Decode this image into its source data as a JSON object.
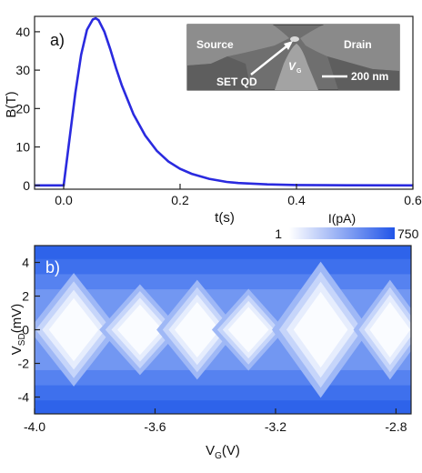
{
  "chart_data": [
    {
      "type": "line",
      "panel_label": "a)",
      "xlabel": "t(s)",
      "ylabel": "B(T)",
      "xlim": [
        -0.05,
        0.6
      ],
      "ylim": [
        -1,
        44
      ],
      "x_ticks": [
        "0.0",
        "0.2",
        "0.4",
        "0.6"
      ],
      "x_tick_values": [
        0.0,
        0.2,
        0.4,
        0.6
      ],
      "y_ticks": [
        "0",
        "10",
        "20",
        "30",
        "40"
      ],
      "y_tick_values": [
        0,
        10,
        20,
        30,
        40
      ],
      "line_color": "#2a2adf",
      "x": [
        -0.05,
        0.0,
        0.01,
        0.02,
        0.03,
        0.04,
        0.05,
        0.055,
        0.06,
        0.07,
        0.08,
        0.09,
        0.1,
        0.12,
        0.14,
        0.16,
        0.18,
        0.2,
        0.22,
        0.25,
        0.28,
        0.3,
        0.35,
        0.4,
        0.45,
        0.5,
        0.6
      ],
      "y": [
        0,
        0,
        12,
        24,
        34,
        40.5,
        43.2,
        43.5,
        43.0,
        40.0,
        35.5,
        30.5,
        26.0,
        18.5,
        13.0,
        9.0,
        6.2,
        4.3,
        3.0,
        1.7,
        0.9,
        0.6,
        0.25,
        0.1,
        0.05,
        0.02,
        0
      ],
      "inset": {
        "labels": {
          "source": "Source",
          "drain": "Drain",
          "gate": "V",
          "gate_sub": "G",
          "dot": "SET QD",
          "scale": "200 nm"
        }
      }
    },
    {
      "type": "heatmap",
      "panel_label": "b)",
      "xlabel": "V",
      "xlabel_sub": "G",
      "xlabel_unit": "(V)",
      "ylabel": "V",
      "ylabel_sub": "SD",
      "ylabel_unit": "(mV)",
      "xlim": [
        -4.0,
        -2.75
      ],
      "ylim": [
        -5,
        5
      ],
      "x_ticks": [
        "-4.0",
        "-3.6",
        "-3.2",
        "-2.8"
      ],
      "x_tick_values": [
        -4.0,
        -3.6,
        -3.2,
        -2.8
      ],
      "y_ticks": [
        "4",
        "2",
        "0",
        "-2",
        "-4"
      ],
      "y_tick_values": [
        4,
        2,
        0,
        -2,
        -4
      ],
      "colorbar": {
        "label": "I(pA)",
        "min_label": "1",
        "max_label": "750",
        "min_color": "#ffffff",
        "max_color": "#2155e8"
      },
      "diamonds": [
        {
          "vg_center": -3.87,
          "half_width": 0.11,
          "vsd_height": 2.5
        },
        {
          "vg_center": -3.65,
          "half_width": 0.1,
          "vsd_height": 2.0
        },
        {
          "vg_center": -3.46,
          "half_width": 0.1,
          "vsd_height": 2.2
        },
        {
          "vg_center": -3.29,
          "half_width": 0.09,
          "vsd_height": 1.8
        },
        {
          "vg_center": -3.05,
          "half_width": 0.12,
          "vsd_height": 3.0
        },
        {
          "vg_center": -2.82,
          "half_width": 0.09,
          "vsd_height": 2.2
        }
      ]
    }
  ]
}
